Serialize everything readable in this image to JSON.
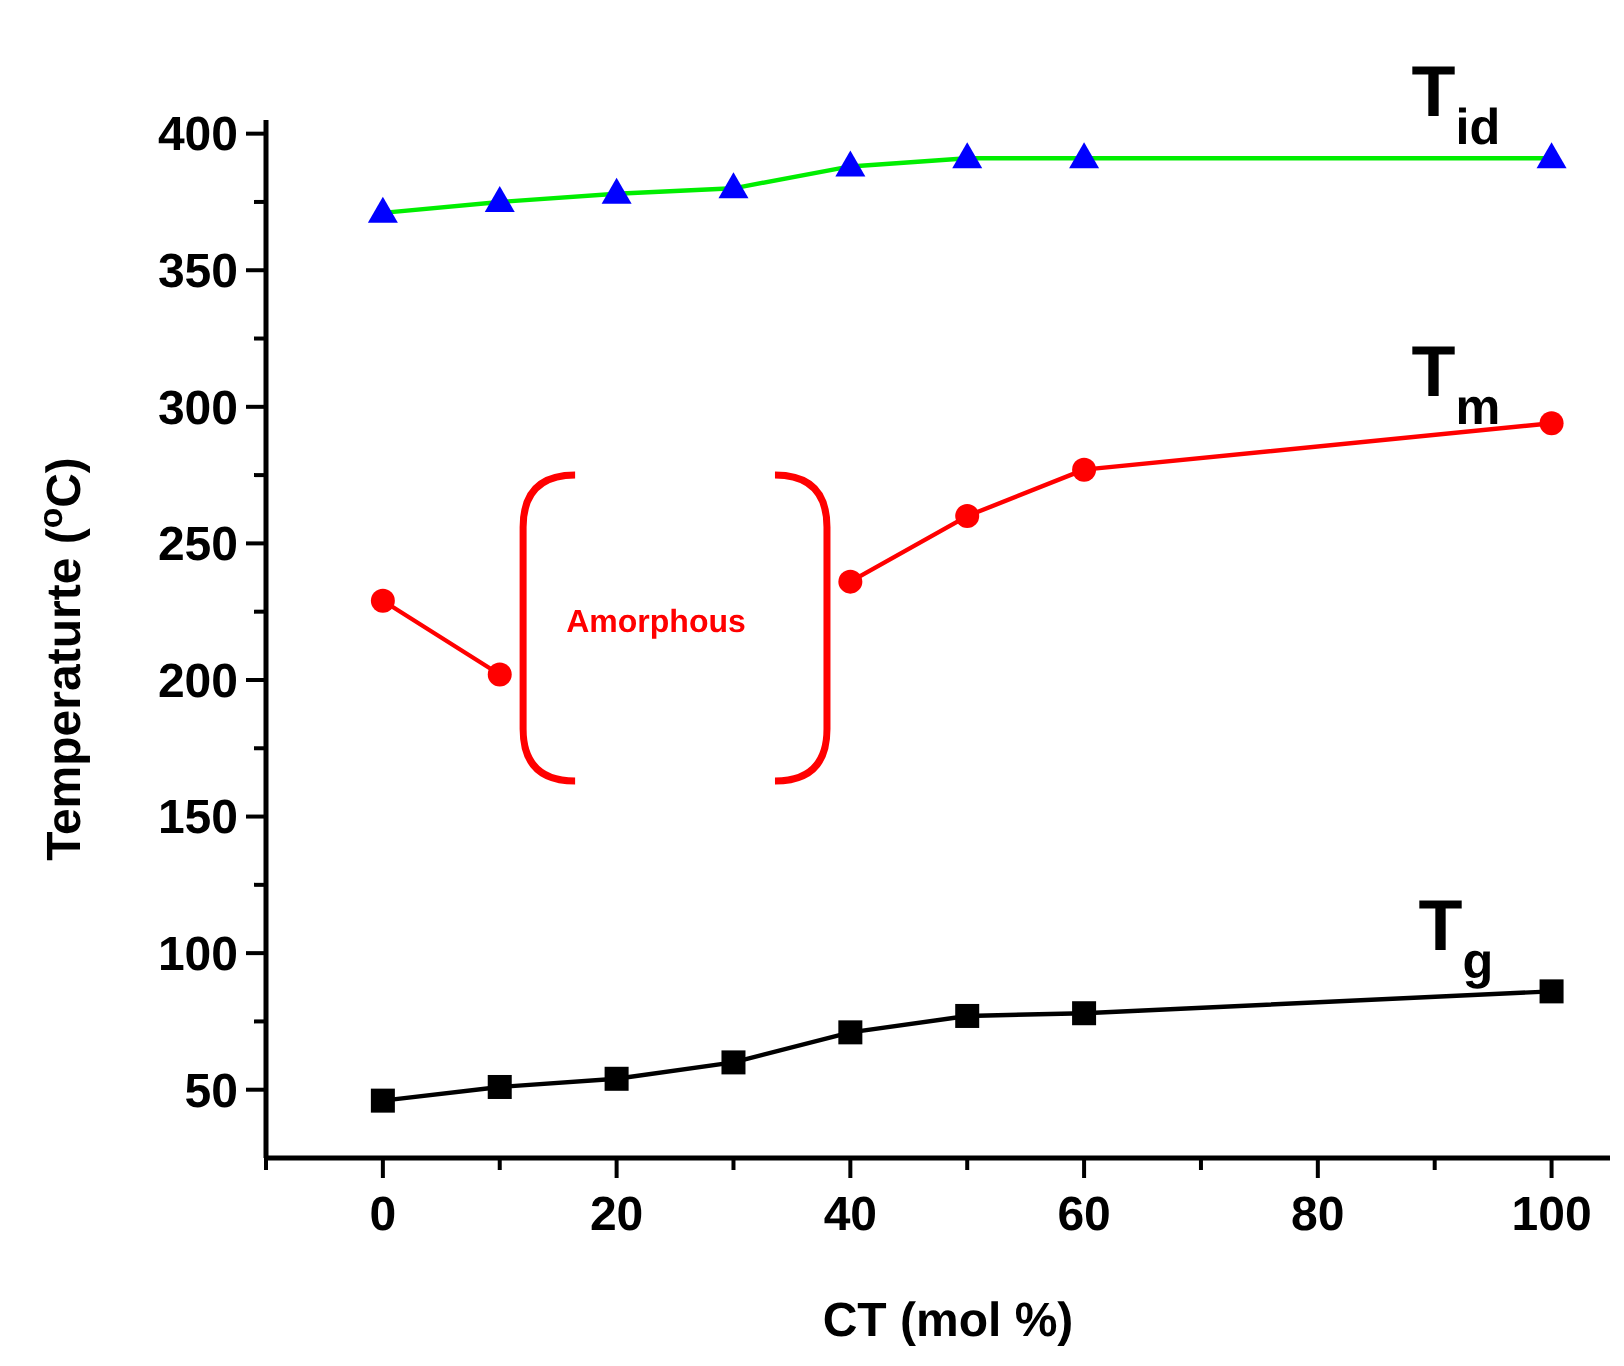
{
  "chart_data": {
    "type": "line",
    "xlabel": "CT (mol %)",
    "ylabel": "Temperaturte ($^{o}$C)",
    "xlim": [
      -10,
      105
    ],
    "ylim": [
      25,
      405
    ],
    "xticks": [
      {
        "value": -10,
        "label": null
      },
      0,
      {
        "value": 10,
        "label": null
      },
      20,
      {
        "value": 30,
        "label": null
      },
      40,
      {
        "value": 50,
        "label": null
      },
      60,
      {
        "value": 70,
        "label": null
      },
      80,
      {
        "value": 90,
        "label": null
      },
      100
    ],
    "yticks": [
      50,
      {
        "value": 75,
        "label": null
      },
      100,
      {
        "value": 125,
        "label": null
      },
      150,
      {
        "value": 175,
        "label": null
      },
      200,
      {
        "value": 225,
        "label": null
      },
      250,
      {
        "value": 275,
        "label": null
      },
      300,
      {
        "value": 325,
        "label": null
      },
      350,
      {
        "value": 375,
        "label": null
      },
      400
    ],
    "grid": false,
    "series": [
      {
        "color": "#00ee00",
        "colors": [
          "#0000ff",
          "#0000ff",
          "#0000ff",
          "#0000ff",
          "#0000ff",
          "#0000ff",
          "#0000ff",
          "#0000ff"
        ],
        "marker": "triangle",
        "x": [
          0,
          10,
          20,
          30,
          40,
          50,
          60,
          100
        ],
        "values": [
          371,
          375,
          378,
          380,
          388,
          391,
          391,
          391
        ]
      },
      {
        "color": "#ff0000",
        "marker": "circle",
        "x": [
          0,
          10,
          20,
          30,
          40,
          50,
          60,
          100
        ],
        "values": [
          229,
          202,
          null,
          null,
          236,
          260,
          277,
          294
        ]
      },
      {
        "color": "#000000",
        "marker": "square",
        "x": [
          0,
          10,
          20,
          30,
          40,
          50,
          60,
          100
        ],
        "values": [
          46,
          51,
          54,
          60,
          71,
          77,
          78,
          86
        ]
      }
    ],
    "annotations": [
      "T$_{id}$",
      "T$_{m}$",
      "T$_{g}$",
      "Amorphous"
    ]
  }
}
